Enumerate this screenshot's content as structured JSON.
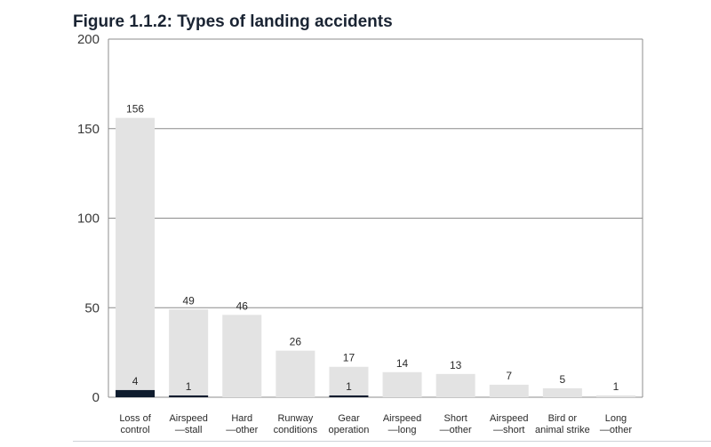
{
  "chart_data": {
    "type": "bar",
    "title": "Figure 1.1.2: Types of landing accidents",
    "xlabel": "",
    "ylabel": "",
    "ylim": [
      0,
      200
    ],
    "yticks": [
      0,
      50,
      100,
      150,
      200
    ],
    "grid": true,
    "categories": [
      [
        "Loss of",
        "control"
      ],
      [
        "Airspeed",
        "—stall"
      ],
      [
        "Hard",
        "—other"
      ],
      [
        "Runway",
        "conditions"
      ],
      [
        "Gear",
        "operation"
      ],
      [
        "Airspeed",
        "—long"
      ],
      [
        "Short",
        "—other"
      ],
      [
        "Airspeed",
        "—short"
      ],
      [
        "Bird or",
        "animal strike"
      ],
      [
        "Long",
        "—other"
      ]
    ],
    "series": [
      {
        "values": [
          156,
          49,
          46,
          26,
          17,
          14,
          13,
          7,
          5,
          1
        ],
        "color": "#e3e3e3"
      },
      {
        "values": [
          4,
          1,
          null,
          null,
          1,
          null,
          null,
          null,
          null,
          null
        ],
        "color": "#0f1c2e"
      }
    ]
  }
}
